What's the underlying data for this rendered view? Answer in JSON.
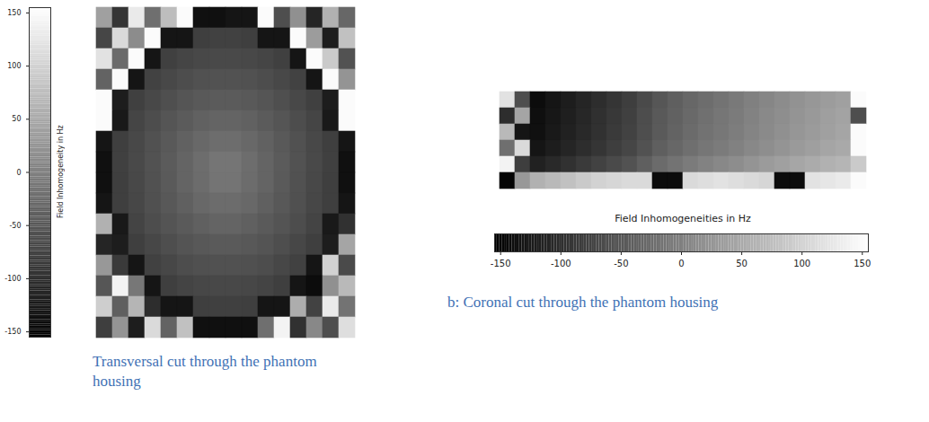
{
  "chart_data": [
    {
      "type": "heatmap",
      "caption": "Transversal cut through the phantom housing",
      "tick_labels": false,
      "colorbar": {
        "label": "Field Inhomogeneity in Hz",
        "range": [
          -155,
          155
        ],
        "ticks": [
          -150,
          -100,
          -50,
          0,
          50,
          100,
          150
        ]
      },
      "cells": [
        [
          40,
          -90,
          130,
          -20,
          75,
          150,
          -135,
          -135,
          -130,
          -130,
          150,
          -60,
          20,
          -110,
          60,
          -30
        ],
        [
          -70,
          110,
          15,
          150,
          -130,
          -130,
          -78,
          -76,
          -76,
          -78,
          -130,
          -130,
          150,
          35,
          -120,
          80
        ],
        [
          120,
          -25,
          150,
          -130,
          -77,
          -71,
          -68,
          -66,
          -66,
          -68,
          -71,
          -77,
          -130,
          150,
          90,
          -55
        ],
        [
          -35,
          150,
          -130,
          -75,
          -68,
          -61,
          -57,
          -55,
          -55,
          -57,
          -61,
          -68,
          -75,
          -130,
          150,
          25
        ],
        [
          150,
          -120,
          -77,
          -68,
          -59,
          -52,
          -47,
          -44,
          -44,
          -47,
          -52,
          -59,
          -68,
          -77,
          -120,
          150
        ],
        [
          150,
          -125,
          -71,
          -61,
          -52,
          -44,
          -37,
          -33,
          -33,
          -37,
          -44,
          -52,
          -61,
          -71,
          -125,
          150
        ],
        [
          -130,
          -78,
          -68,
          -57,
          -47,
          -37,
          -28,
          -23,
          -23,
          -28,
          -37,
          -47,
          -57,
          -68,
          -78,
          -130
        ],
        [
          -135,
          -77,
          -66,
          -55,
          -44,
          -33,
          -23,
          -13,
          -13,
          -23,
          -33,
          -44,
          -55,
          -66,
          -77,
          -135
        ],
        [
          -135,
          -78,
          -67,
          -56,
          -45,
          -34,
          -24,
          -14,
          -14,
          -24,
          -34,
          -45,
          -56,
          -67,
          -78,
          -135
        ],
        [
          -130,
          -79,
          -69,
          -58,
          -48,
          -38,
          -29,
          -24,
          -24,
          -29,
          -38,
          -48,
          -58,
          -69,
          -79,
          -130
        ],
        [
          60,
          -125,
          -72,
          -62,
          -53,
          -45,
          -38,
          -34,
          -34,
          -38,
          -45,
          -53,
          -62,
          -72,
          -125,
          -95
        ],
        [
          -110,
          -120,
          -78,
          -69,
          -60,
          -53,
          -48,
          -45,
          -45,
          -48,
          -53,
          -60,
          -69,
          -78,
          -120,
          45
        ],
        [
          30,
          -85,
          -130,
          -76,
          -69,
          -62,
          -58,
          -56,
          -56,
          -58,
          -62,
          -69,
          -76,
          -130,
          100,
          -65
        ],
        [
          -50,
          140,
          -10,
          -130,
          -78,
          -72,
          -69,
          -67,
          -67,
          -69,
          -72,
          -78,
          -130,
          -140,
          20,
          70
        ],
        [
          95,
          -40,
          65,
          -100,
          -130,
          -130,
          -79,
          -77,
          -77,
          -79,
          -130,
          -130,
          55,
          -75,
          130,
          -15
        ],
        [
          -80,
          25,
          -120,
          110,
          -35,
          80,
          -135,
          -135,
          -135,
          -135,
          -20,
          140,
          -95,
          10,
          -60,
          115
        ]
      ]
    },
    {
      "type": "heatmap",
      "caption": "b: Coronal cut through the phantom housing",
      "tick_labels": false,
      "colorbar": {
        "label": "Field Inhomogeneities in Hz",
        "range": [
          -155,
          155
        ],
        "ticks": [
          -150,
          -100,
          -50,
          0,
          50,
          100,
          150
        ],
        "orientation": "horizontal"
      },
      "cells": [
        [
          120,
          -60,
          -140,
          -130,
          -120,
          -110,
          -100,
          -90,
          -80,
          -65,
          -50,
          -40,
          -30,
          -22,
          -15,
          -8,
          0,
          8,
          15,
          22,
          28,
          35,
          40,
          150
        ],
        [
          -100,
          45,
          -137,
          -127,
          -117,
          -107,
          -97,
          -87,
          -77,
          -62,
          -47,
          -37,
          -27,
          -19,
          -12,
          -5,
          3,
          11,
          18,
          25,
          31,
          38,
          43,
          -60
        ],
        [
          70,
          -130,
          -135,
          -125,
          -115,
          -105,
          -95,
          -85,
          -75,
          -60,
          -45,
          -35,
          -25,
          -17,
          -10,
          -3,
          5,
          13,
          20,
          27,
          33,
          40,
          45,
          150
        ],
        [
          -20,
          110,
          -130,
          -120,
          -110,
          -100,
          -90,
          -80,
          -70,
          -55,
          -40,
          -30,
          -20,
          -12,
          -5,
          2,
          10,
          18,
          25,
          32,
          38,
          45,
          50,
          150
        ],
        [
          140,
          -80,
          -115,
          -105,
          -95,
          -85,
          -75,
          -65,
          -55,
          -40,
          -25,
          -15,
          -5,
          3,
          10,
          17,
          25,
          33,
          40,
          47,
          53,
          60,
          65,
          90
        ],
        [
          -150,
          30,
          60,
          70,
          80,
          90,
          100,
          105,
          110,
          110,
          -140,
          -140,
          110,
          115,
          120,
          115,
          110,
          105,
          -140,
          -140,
          120,
          125,
          130,
          150
        ]
      ]
    }
  ]
}
